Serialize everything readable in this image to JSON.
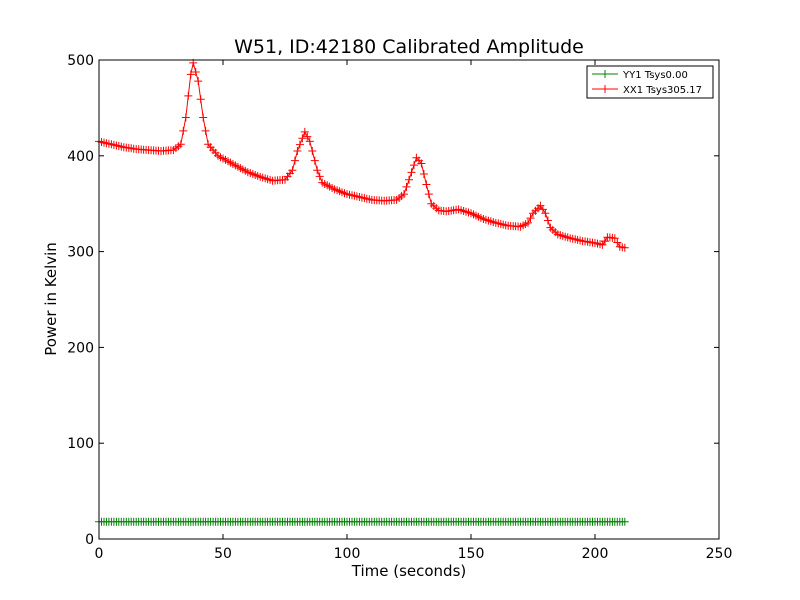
{
  "chart_data": {
    "type": "line",
    "title": "W51, ID:42180 Calibrated Amplitude",
    "xlabel": "Time (seconds)",
    "ylabel": "Power in Kelvin",
    "xlim": [
      0,
      250
    ],
    "ylim": [
      0,
      500
    ],
    "xticks": [
      0,
      50,
      100,
      150,
      200,
      250
    ],
    "yticks": [
      0,
      100,
      200,
      300,
      400,
      500
    ],
    "grid": false,
    "legend_position": "top-right",
    "marker": "+",
    "series": [
      {
        "name": "YY1 Tsys0.00",
        "color": "#008000",
        "points": [
          [
            0,
            18
          ],
          [
            212,
            18
          ]
        ],
        "segments": [
          [
            0,
            212
          ]
        ]
      },
      {
        "name": "XX1 Tsys305.17",
        "color": "#ff0000",
        "points": [
          [
            0,
            415
          ],
          [
            5,
            412
          ],
          [
            10,
            409
          ],
          [
            15,
            407
          ],
          [
            20,
            406
          ],
          [
            25,
            405
          ],
          [
            30,
            406
          ],
          [
            33,
            412
          ],
          [
            35,
            440
          ],
          [
            37,
            485
          ],
          [
            38,
            497
          ],
          [
            40,
            478
          ],
          [
            42,
            440
          ],
          [
            44,
            412
          ],
          [
            48,
            400
          ],
          [
            55,
            390
          ],
          [
            60,
            383
          ],
          [
            65,
            378
          ],
          [
            70,
            374
          ],
          [
            75,
            375
          ],
          [
            78,
            385
          ],
          [
            80,
            405
          ],
          [
            83,
            425
          ],
          [
            85,
            415
          ],
          [
            88,
            385
          ],
          [
            90,
            372
          ],
          [
            95,
            365
          ],
          [
            100,
            360
          ],
          [
            105,
            357
          ],
          [
            110,
            354
          ],
          [
            115,
            353
          ],
          [
            120,
            354
          ],
          [
            123,
            360
          ],
          [
            125,
            375
          ],
          [
            128,
            398
          ],
          [
            130,
            392
          ],
          [
            132,
            370
          ],
          [
            134,
            350
          ],
          [
            137,
            343
          ],
          [
            140,
            342
          ],
          [
            145,
            344
          ],
          [
            150,
            340
          ],
          [
            155,
            334
          ],
          [
            160,
            330
          ],
          [
            165,
            327
          ],
          [
            170,
            326
          ],
          [
            173,
            330
          ],
          [
            175,
            340
          ],
          [
            178,
            348
          ],
          [
            180,
            340
          ],
          [
            182,
            325
          ],
          [
            185,
            318
          ],
          [
            190,
            314
          ],
          [
            195,
            311
          ],
          [
            200,
            309
          ],
          [
            203,
            307
          ],
          [
            205,
            315
          ],
          [
            208,
            314
          ],
          [
            210,
            305
          ],
          [
            212,
            304
          ]
        ],
        "segments": [
          [
            0,
            204
          ],
          [
            204,
            208
          ],
          [
            209,
            212
          ]
        ]
      }
    ]
  }
}
